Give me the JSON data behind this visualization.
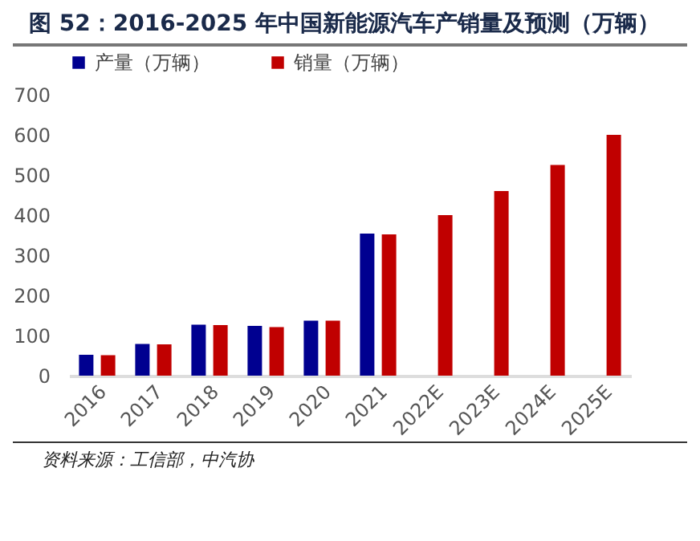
{
  "chart_data": {
    "type": "bar",
    "title": "图 52：2016-2025 年中国新能源汽车产销量及预测（万辆）",
    "categories": [
      "2016",
      "2017",
      "2018",
      "2019",
      "2020",
      "2021",
      "2022E",
      "2023E",
      "2024E",
      "2025E"
    ],
    "series": [
      {
        "name": "产量（万辆）",
        "color": "#000090",
        "values": [
          52,
          79,
          127,
          124,
          137,
          354,
          null,
          null,
          null,
          null
        ]
      },
      {
        "name": "销量（万辆）",
        "color": "#c00000",
        "values": [
          51,
          78,
          126,
          121,
          137,
          352,
          400,
          460,
          525,
          600
        ]
      }
    ],
    "ylim": [
      0,
      700
    ],
    "yticks": [
      0,
      100,
      200,
      300,
      400,
      500,
      600,
      700
    ],
    "grid": false,
    "legend": "top",
    "annotations": [
      "资料来源：工信部，中汽协"
    ]
  }
}
